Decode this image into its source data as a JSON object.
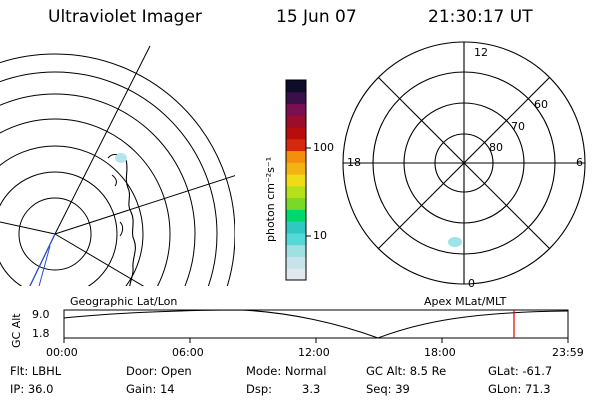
{
  "header": {
    "instrument": "Ultraviolet Imager",
    "date": "15 Jun 07",
    "time": "21:30:17 UT"
  },
  "left_panel": {
    "label": "Geographic Lat/Lon"
  },
  "right_panel": {
    "label": "Apex MLat/MLT",
    "mlt_labels": [
      "12",
      "18",
      "6",
      "0"
    ],
    "mlat_labels": [
      "60",
      "70",
      "80"
    ]
  },
  "colorbar": {
    "label": "photon cm⁻²s⁻¹",
    "ticks": [
      "100",
      "10"
    ],
    "colors": [
      "#dfe9ee",
      "#c8e4ea",
      "#9fe0e2",
      "#56d8d8",
      "#2fc9c2",
      "#00d96a",
      "#79d926",
      "#b4e11a",
      "#efdc17",
      "#f3b313",
      "#f48e0d",
      "#d6280c",
      "#b80d0c",
      "#9b0d2b",
      "#7a0f52",
      "#3a104a",
      "#0d0d2a"
    ]
  },
  "altitude_plot": {
    "y_label": "GC Alt",
    "y_ticks": [
      "9.0",
      "1.8"
    ],
    "x_ticks": [
      "00:00",
      "06:00",
      "12:00",
      "18:00",
      "23:59"
    ],
    "current_time_color": "#e00000"
  },
  "info": {
    "flt": "Flt: LBHL",
    "door": "Door: Open",
    "mode": "Mode: Normal",
    "gc_alt": "GC Alt: 8.5 Re",
    "glat": "GLat: -61.7",
    "ip": "IP: 36.0",
    "gain": "Gain: 14",
    "dsp_label": "Dsp:",
    "dsp_value": "3.3",
    "seq": "Seq: 39",
    "glon": "GLon: 71.3"
  }
}
